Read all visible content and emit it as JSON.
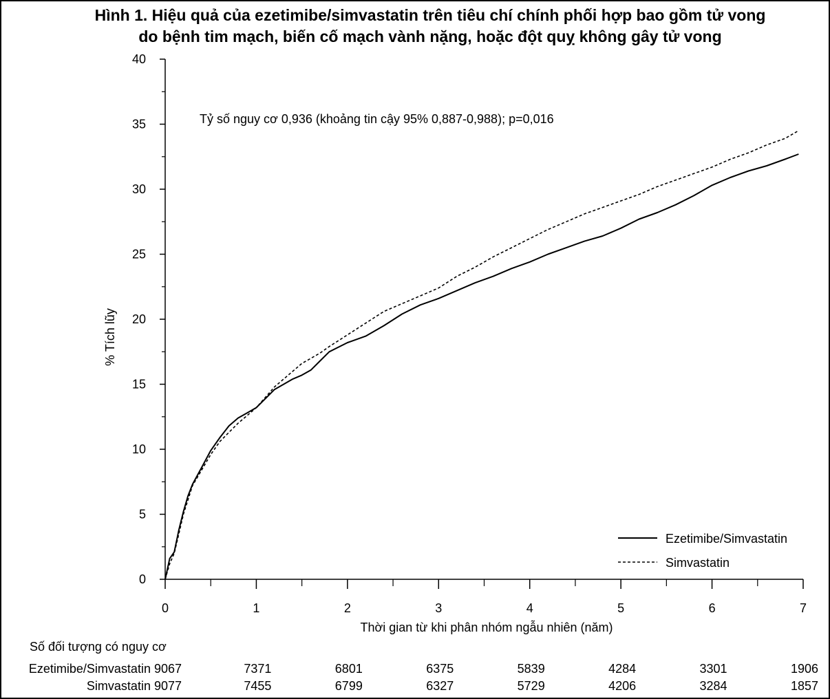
{
  "title": {
    "line1": "Hình 1. Hiệu quả của ezetimibe/simvastatin trên tiêu chí chính phối hợp bao gồm tử vong",
    "line2": "do bệnh tim mạch, biến cố mạch vành nặng, hoặc đột quỵ không gây tử vong"
  },
  "chart_data": {
    "type": "line",
    "title": "Hình 1. Hiệu quả của ezetimibe/simvastatin trên tiêu chí chính phối hợp bao gồm tử vong do bệnh tim mạch, biến cố mạch vành nặng, hoặc đột quỵ không gây tử vong",
    "xlabel": "Thời gian từ khi phân nhóm ngẫu nhiên (năm)",
    "ylabel": "% Tích lũy",
    "xlim": [
      0,
      7
    ],
    "ylim": [
      0,
      40
    ],
    "xticks": [
      "0",
      "1",
      "2",
      "3",
      "4",
      "5",
      "6",
      "7"
    ],
    "yticks": [
      "0",
      "5",
      "10",
      "15",
      "20",
      "25",
      "30",
      "35",
      "40"
    ],
    "grid": false,
    "legend_position": "bottom-right",
    "annotation": "Tỷ số nguy cơ 0,936 (khoảng tin cậy 95% 0,887-0,988); p=0,016",
    "series": [
      {
        "name": "Ezetimibe/Simvastatin",
        "style": "solid",
        "color": "#000000",
        "x": [
          0,
          0.05,
          0.1,
          0.15,
          0.2,
          0.25,
          0.3,
          0.4,
          0.5,
          0.6,
          0.7,
          0.8,
          0.9,
          1.0,
          1.1,
          1.2,
          1.3,
          1.4,
          1.5,
          1.6,
          1.7,
          1.8,
          2.0,
          2.2,
          2.4,
          2.6,
          2.8,
          3.0,
          3.2,
          3.4,
          3.6,
          3.8,
          4.0,
          4.2,
          4.4,
          4.6,
          4.8,
          5.0,
          5.2,
          5.4,
          5.6,
          5.8,
          6.0,
          6.2,
          6.4,
          6.6,
          6.8,
          6.95
        ],
        "y": [
          0,
          1.6,
          2.1,
          3.8,
          5.2,
          6.4,
          7.3,
          8.6,
          9.9,
          10.9,
          11.8,
          12.4,
          12.8,
          13.2,
          13.9,
          14.6,
          15.0,
          15.4,
          15.7,
          16.1,
          16.8,
          17.5,
          18.2,
          18.7,
          19.5,
          20.4,
          21.1,
          21.6,
          22.2,
          22.8,
          23.3,
          23.9,
          24.4,
          25.0,
          25.5,
          26.0,
          26.4,
          27.0,
          27.7,
          28.2,
          28.8,
          29.5,
          30.3,
          30.9,
          31.4,
          31.8,
          32.3,
          32.7
        ]
      },
      {
        "name": "Simvastatin",
        "style": "dashed",
        "color": "#000000",
        "x": [
          0,
          0.05,
          0.1,
          0.15,
          0.2,
          0.25,
          0.3,
          0.4,
          0.5,
          0.6,
          0.7,
          0.8,
          0.9,
          1.0,
          1.1,
          1.2,
          1.3,
          1.4,
          1.5,
          1.6,
          1.7,
          1.8,
          2.0,
          2.2,
          2.4,
          2.6,
          2.8,
          3.0,
          3.2,
          3.4,
          3.6,
          3.8,
          4.0,
          4.2,
          4.4,
          4.6,
          4.8,
          5.0,
          5.2,
          5.4,
          5.6,
          5.8,
          6.0,
          6.2,
          6.4,
          6.6,
          6.8,
          6.95
        ],
        "y": [
          0,
          1.2,
          2.0,
          3.5,
          5.0,
          6.1,
          7.2,
          8.4,
          9.6,
          10.6,
          11.3,
          12.0,
          12.6,
          13.2,
          14.0,
          14.8,
          15.4,
          16.0,
          16.6,
          17.0,
          17.4,
          17.9,
          18.8,
          19.7,
          20.6,
          21.2,
          21.8,
          22.4,
          23.3,
          24.0,
          24.8,
          25.5,
          26.2,
          26.9,
          27.5,
          28.1,
          28.6,
          29.1,
          29.6,
          30.2,
          30.7,
          31.2,
          31.7,
          32.3,
          32.8,
          33.4,
          33.9,
          34.5
        ]
      }
    ]
  },
  "risk_table": {
    "header": "Số đối tượng có nguy cơ",
    "rows": [
      {
        "label": "Ezetimibe/Simvastatin 9067",
        "values": [
          "7371",
          "6801",
          "6375",
          "5839",
          "4284",
          "3301",
          "1906"
        ]
      },
      {
        "label": "Simvastatin 9077",
        "values": [
          "7455",
          "6799",
          "6327",
          "5729",
          "4206",
          "3284",
          "1857"
        ]
      }
    ]
  }
}
